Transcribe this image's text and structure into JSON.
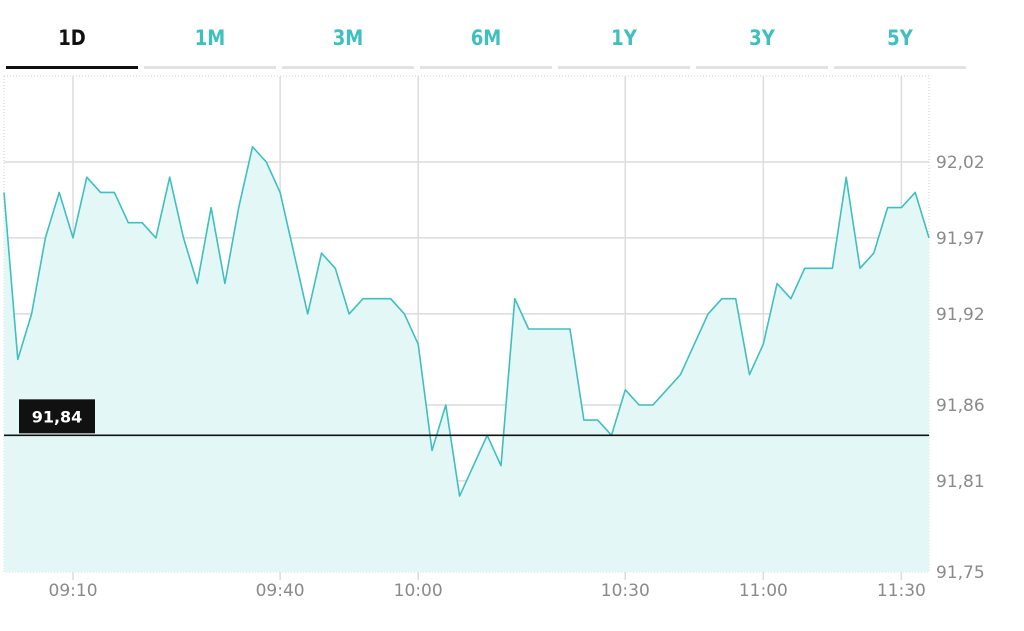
{
  "tabs": [
    {
      "label": "1D",
      "active": true
    },
    {
      "label": "1M",
      "active": false
    },
    {
      "label": "3M",
      "active": false
    },
    {
      "label": "6M",
      "active": false
    },
    {
      "label": "1Y",
      "active": false
    },
    {
      "label": "3Y",
      "active": false
    },
    {
      "label": "5Y",
      "active": false
    }
  ],
  "colors": {
    "accent": "#40bfbf",
    "fill": "#e4f7f7",
    "grid": "#dcdcdc",
    "marker": "#111111"
  },
  "chart_data": {
    "type": "area",
    "title": "",
    "xlabel": "",
    "ylabel": "",
    "x_ticks": [
      "09:10",
      "09:40",
      "10:00",
      "10:30",
      "11:00",
      "11:30"
    ],
    "x_tick_minutes": [
      10,
      40,
      60,
      90,
      110,
      130
    ],
    "y_ticks": [
      "92,02",
      "91,97",
      "91,92",
      "91,86",
      "91,81",
      "91,75"
    ],
    "y_tick_values": [
      92.02,
      91.97,
      91.92,
      91.86,
      91.81,
      91.75
    ],
    "ylim": [
      91.75,
      92.06
    ],
    "grid": true,
    "current_value": 91.84,
    "current_label": "91,84",
    "x": [
      0,
      2,
      4,
      6,
      8,
      10,
      12,
      14,
      16,
      18,
      20,
      22,
      24,
      26,
      28,
      30,
      32,
      34,
      36,
      38,
      40,
      42,
      44,
      46,
      48,
      50,
      52,
      54,
      56,
      58,
      60,
      62,
      64,
      66,
      68,
      70,
      72,
      74,
      76,
      78,
      80,
      82,
      84,
      86,
      88,
      90,
      92,
      94,
      96,
      98,
      100,
      102,
      104,
      106,
      108,
      110,
      112,
      114,
      116,
      118,
      120,
      122,
      124,
      126,
      128,
      130,
      132,
      134
    ],
    "y": [
      92.0,
      91.89,
      91.92,
      91.97,
      92.0,
      91.97,
      92.01,
      92.0,
      92.0,
      91.98,
      91.98,
      91.97,
      92.01,
      91.97,
      91.94,
      91.99,
      91.94,
      91.99,
      92.03,
      92.02,
      92.0,
      91.96,
      91.92,
      91.96,
      91.95,
      91.92,
      91.93,
      91.93,
      91.93,
      91.92,
      91.9,
      91.83,
      91.86,
      91.8,
      91.82,
      91.84,
      91.82,
      91.93,
      91.91,
      91.91,
      91.91,
      91.91,
      91.85,
      91.85,
      91.84,
      91.87,
      91.86,
      91.86,
      91.87,
      91.88,
      91.9,
      91.92,
      91.93,
      91.93,
      91.88,
      91.9,
      91.94,
      91.93,
      91.95,
      91.95,
      91.95,
      92.01,
      91.95,
      91.96,
      91.99,
      91.99,
      92.0,
      91.97
    ]
  }
}
